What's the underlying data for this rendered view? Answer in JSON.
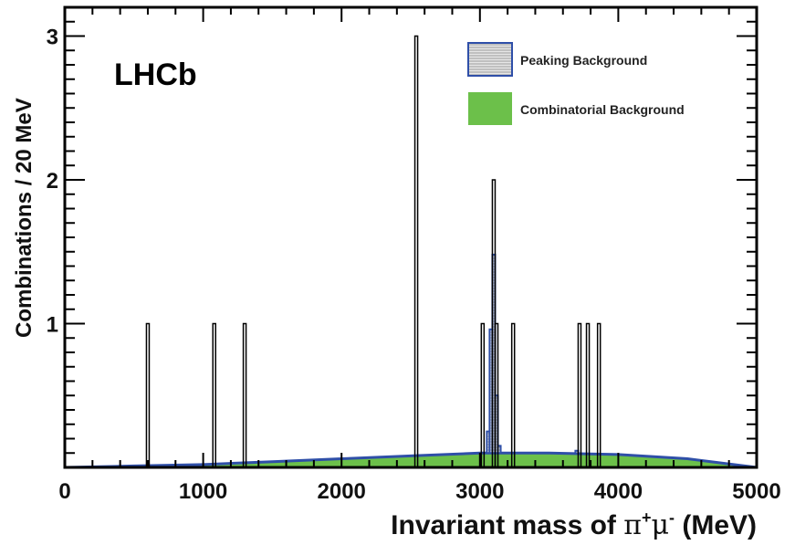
{
  "chart_data": {
    "type": "histogram",
    "brand_label": "LHCb",
    "xlabel": {
      "main": "Invariant mass of ",
      "pi": "π",
      "plus": "+",
      "mu": "μ",
      "minus": "-",
      "unit": " (MeV)"
    },
    "ylabel": "Combinations / 20 MeV",
    "xlim": [
      0,
      5000
    ],
    "ylim": [
      0,
      3.2
    ],
    "bin_width": 20,
    "x_ticks": [
      0,
      1000,
      2000,
      3000,
      4000,
      5000
    ],
    "y_ticks": [
      1,
      2,
      3
    ],
    "colors": {
      "frame": "#000000",
      "data": "#000000",
      "peaking": "#2f4fa8",
      "peaking_fill": "#c8c8c8",
      "combinatorial": "#6cc04a"
    },
    "legend": [
      {
        "label": "Peaking Background",
        "style": "hatched"
      },
      {
        "label": "Combinatorial Background",
        "style": "filled"
      }
    ],
    "data_bins": [
      {
        "x": 600,
        "count": 1
      },
      {
        "x": 1080,
        "count": 1
      },
      {
        "x": 1300,
        "count": 1
      },
      {
        "x": 2540,
        "count": 3
      },
      {
        "x": 3020,
        "count": 1
      },
      {
        "x": 3100,
        "count": 2
      },
      {
        "x": 3120,
        "count": 1
      },
      {
        "x": 3240,
        "count": 1
      },
      {
        "x": 3720,
        "count": 1
      },
      {
        "x": 3780,
        "count": 1
      },
      {
        "x": 3860,
        "count": 1
      }
    ],
    "combinatorial_curve": [
      {
        "x": 0,
        "y": 0.0
      },
      {
        "x": 500,
        "y": 0.01
      },
      {
        "x": 1000,
        "y": 0.02
      },
      {
        "x": 1500,
        "y": 0.04
      },
      {
        "x": 2000,
        "y": 0.06
      },
      {
        "x": 2500,
        "y": 0.08
      },
      {
        "x": 3000,
        "y": 0.1
      },
      {
        "x": 3500,
        "y": 0.1
      },
      {
        "x": 4000,
        "y": 0.09
      },
      {
        "x": 4500,
        "y": 0.06
      },
      {
        "x": 5000,
        "y": 0.0
      }
    ],
    "peaking_bins": [
      {
        "x": 3060,
        "value": 0.15
      },
      {
        "x": 3080,
        "value": 0.86
      },
      {
        "x": 3100,
        "value": 1.38
      },
      {
        "x": 3120,
        "value": 0.4
      },
      {
        "x": 3140,
        "value": 0.05
      },
      {
        "x": 3700,
        "value": 0.02
      }
    ]
  }
}
